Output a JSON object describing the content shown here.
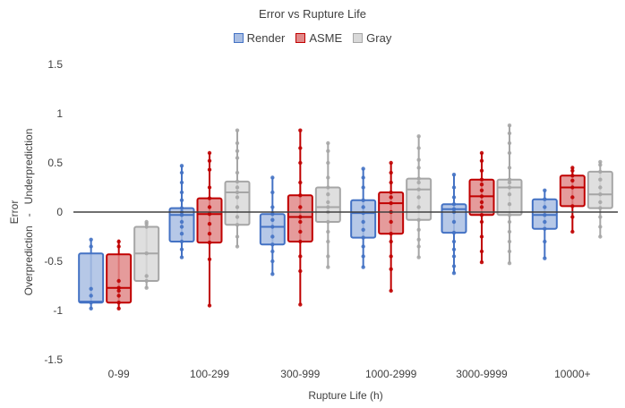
{
  "chart_data": {
    "type": "box",
    "title": "Error vs Rupture Life",
    "xlabel": "Rupture Life (h)",
    "ylabel_lines": [
      "Error",
      "Overprediction   -   Underprediction"
    ],
    "ylim": [
      -1.5,
      1.5
    ],
    "yticks": [
      -1.5,
      -1,
      -0.5,
      0,
      0.5,
      1,
      1.5
    ],
    "ytick_labels": [
      "-1.5",
      "-1",
      "-0.5",
      "0",
      "0.5",
      "1",
      "1.5"
    ],
    "grid": false,
    "legend_position": "top",
    "categories": [
      "0-99",
      "100-299",
      "300-999",
      "1000-2999",
      "3000-9999",
      "10000+"
    ],
    "series": [
      {
        "name": "Render",
        "stroke": "#4472C4",
        "fill": "#A9BEE3",
        "boxes": [
          {
            "min": -0.98,
            "q1": -0.92,
            "median": -0.91,
            "q3": -0.42,
            "max": -0.28,
            "points": [
              -0.98,
              -0.92,
              -0.85,
              -0.78,
              -0.35,
              -0.28
            ]
          },
          {
            "min": -0.46,
            "q1": -0.3,
            "median": -0.03,
            "q3": 0.04,
            "max": 0.47,
            "points": [
              -0.46,
              -0.38,
              -0.3,
              -0.22,
              -0.15,
              -0.1,
              -0.03,
              0.0,
              0.04,
              0.12,
              0.2,
              0.3,
              0.4,
              0.47
            ]
          },
          {
            "min": -0.63,
            "q1": -0.33,
            "median": -0.15,
            "q3": -0.02,
            "max": 0.35,
            "points": [
              -0.63,
              -0.5,
              -0.4,
              -0.33,
              -0.25,
              -0.15,
              -0.08,
              -0.02,
              0.05,
              0.2,
              0.35
            ]
          },
          {
            "min": -0.56,
            "q1": -0.26,
            "median": -0.01,
            "q3": 0.12,
            "max": 0.44,
            "points": [
              -0.56,
              -0.45,
              -0.35,
              -0.26,
              -0.18,
              -0.1,
              -0.01,
              0.05,
              0.12,
              0.25,
              0.35,
              0.44
            ]
          },
          {
            "min": -0.62,
            "q1": -0.21,
            "median": 0.03,
            "q3": 0.08,
            "max": 0.38,
            "points": [
              -0.62,
              -0.55,
              -0.45,
              -0.38,
              -0.3,
              -0.21,
              -0.1,
              0.0,
              0.03,
              0.08,
              0.15,
              0.25,
              0.38
            ]
          },
          {
            "min": -0.47,
            "q1": -0.17,
            "median": -0.03,
            "q3": 0.13,
            "max": 0.22,
            "points": [
              -0.47,
              -0.3,
              -0.17,
              -0.1,
              -0.03,
              0.05,
              0.13,
              0.22
            ]
          }
        ]
      },
      {
        "name": "ASME",
        "stroke": "#C00000",
        "fill": "#E08A8A",
        "boxes": [
          {
            "min": -0.98,
            "q1": -0.92,
            "median": -0.77,
            "q3": -0.43,
            "max": -0.28,
            "points": [
              -0.98,
              -0.92,
              -0.85,
              -0.8,
              -0.77,
              -0.7,
              -0.35,
              -0.3
            ]
          },
          {
            "min": -0.95,
            "q1": -0.31,
            "median": -0.02,
            "q3": 0.14,
            "max": 0.6,
            "points": [
              -0.95,
              -0.48,
              -0.31,
              -0.22,
              -0.12,
              -0.02,
              0.05,
              0.14,
              0.25,
              0.43,
              0.52,
              0.6
            ]
          },
          {
            "min": -0.94,
            "q1": -0.3,
            "median": -0.05,
            "q3": 0.17,
            "max": 0.83,
            "points": [
              -0.94,
              -0.6,
              -0.45,
              -0.3,
              -0.2,
              -0.1,
              -0.05,
              0.05,
              0.17,
              0.3,
              0.5,
              0.65,
              0.83
            ]
          },
          {
            "min": -0.8,
            "q1": -0.22,
            "median": 0.09,
            "q3": 0.2,
            "max": 0.5,
            "points": [
              -0.8,
              -0.58,
              -0.45,
              -0.3,
              -0.22,
              -0.1,
              0.0,
              0.09,
              0.15,
              0.2,
              0.3,
              0.4,
              0.5
            ]
          },
          {
            "min": -0.51,
            "q1": -0.03,
            "median": 0.16,
            "q3": 0.33,
            "max": 0.6,
            "points": [
              -0.51,
              -0.4,
              -0.25,
              -0.1,
              -0.03,
              0.05,
              0.1,
              0.16,
              0.22,
              0.28,
              0.33,
              0.42,
              0.52,
              0.6
            ]
          },
          {
            "min": -0.2,
            "q1": 0.06,
            "median": 0.25,
            "q3": 0.37,
            "max": 0.45,
            "points": [
              -0.2,
              -0.05,
              0.06,
              0.15,
              0.25,
              0.32,
              0.37,
              0.42,
              0.45
            ]
          }
        ]
      },
      {
        "name": "Gray",
        "stroke": "#A6A6A6",
        "fill": "#D9D9D9",
        "boxes": [
          {
            "min": -0.77,
            "q1": -0.7,
            "median": -0.42,
            "q3": -0.15,
            "max": -0.1,
            "points": [
              -0.77,
              -0.7,
              -0.65,
              -0.42,
              -0.15,
              -0.12,
              -0.1
            ]
          },
          {
            "min": -0.35,
            "q1": -0.13,
            "median": 0.2,
            "q3": 0.31,
            "max": 0.83,
            "points": [
              -0.35,
              -0.25,
              -0.13,
              -0.05,
              0.05,
              0.15,
              0.2,
              0.25,
              0.31,
              0.4,
              0.55,
              0.62,
              0.7,
              0.83
            ]
          },
          {
            "min": -0.56,
            "q1": -0.1,
            "median": 0.05,
            "q3": 0.25,
            "max": 0.7,
            "points": [
              -0.56,
              -0.45,
              -0.3,
              -0.2,
              -0.1,
              0.0,
              0.05,
              0.1,
              0.18,
              0.25,
              0.35,
              0.5,
              0.62,
              0.7
            ]
          },
          {
            "min": -0.46,
            "q1": -0.08,
            "median": 0.23,
            "q3": 0.34,
            "max": 0.77,
            "points": [
              -0.46,
              -0.35,
              -0.28,
              -0.18,
              -0.08,
              0.05,
              0.15,
              0.23,
              0.3,
              0.34,
              0.45,
              0.53,
              0.65,
              0.77
            ]
          },
          {
            "min": -0.52,
            "q1": -0.03,
            "median": 0.25,
            "q3": 0.33,
            "max": 0.88,
            "points": [
              -0.52,
              -0.4,
              -0.3,
              -0.2,
              -0.1,
              -0.03,
              0.08,
              0.18,
              0.25,
              0.3,
              0.33,
              0.45,
              0.6,
              0.7,
              0.8,
              0.88
            ]
          },
          {
            "min": -0.25,
            "q1": 0.04,
            "median": 0.18,
            "q3": 0.41,
            "max": 0.51,
            "points": [
              -0.25,
              -0.15,
              -0.05,
              0.04,
              0.1,
              0.18,
              0.25,
              0.33,
              0.41,
              0.48,
              0.51
            ]
          }
        ]
      }
    ]
  }
}
